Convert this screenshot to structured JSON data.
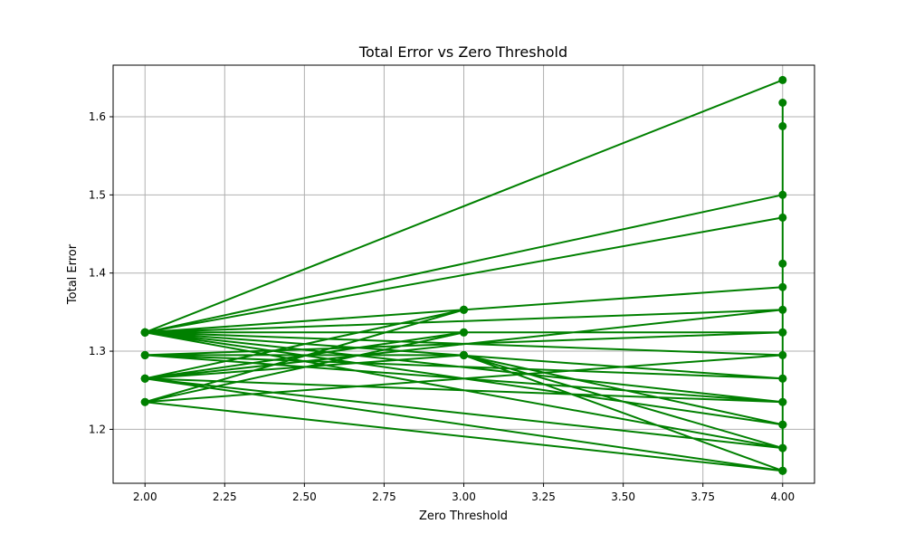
{
  "chart_data": {
    "type": "line",
    "title": "Total Error vs Zero Threshold",
    "xlabel": "Zero Threshold",
    "ylabel": "Total Error",
    "xlim": [
      1.9,
      4.1
    ],
    "ylim": [
      1.131,
      1.666
    ],
    "xticks": [
      2.0,
      2.25,
      2.5,
      2.75,
      3.0,
      3.25,
      3.5,
      3.75,
      4.0
    ],
    "xtick_labels": [
      "2.00",
      "2.25",
      "2.50",
      "2.75",
      "3.00",
      "3.25",
      "3.50",
      "3.75",
      "4.00"
    ],
    "yticks": [
      1.2,
      1.3,
      1.4,
      1.5,
      1.6
    ],
    "ytick_labels": [
      "1.2",
      "1.3",
      "1.4",
      "1.5",
      "1.6"
    ],
    "grid": true,
    "color": "#008000",
    "marker": "circle",
    "series": [
      {
        "x": [
          2,
          4,
          2,
          4,
          2,
          4,
          2,
          3,
          2,
          4,
          2,
          4,
          2,
          3,
          2,
          4,
          2,
          4,
          2,
          4,
          2,
          3,
          2,
          4,
          2,
          4,
          2,
          4,
          2,
          3,
          2,
          4,
          2,
          4,
          2,
          4,
          2,
          3,
          2,
          4,
          2,
          3,
          4,
          4,
          4,
          4,
          4,
          3,
          4,
          2,
          3,
          4,
          3,
          4
        ],
        "y": [
          1.324,
          1.647,
          1.324,
          1.5,
          1.324,
          1.471,
          1.324,
          1.353,
          1.324,
          1.382,
          1.324,
          1.353,
          1.265,
          1.353,
          1.324,
          1.324,
          1.295,
          1.324,
          1.324,
          1.295,
          1.235,
          1.353,
          1.324,
          1.265,
          1.324,
          1.235,
          1.295,
          1.235,
          1.265,
          1.324,
          1.324,
          1.206,
          1.324,
          1.176,
          1.265,
          1.147,
          1.235,
          1.324,
          1.324,
          1.265,
          1.295,
          1.295,
          1.147,
          1.618,
          1.588,
          1.412,
          1.206,
          1.295,
          1.176,
          1.265,
          1.295,
          1.147,
          1.295,
          1.206
        ]
      }
    ]
  }
}
